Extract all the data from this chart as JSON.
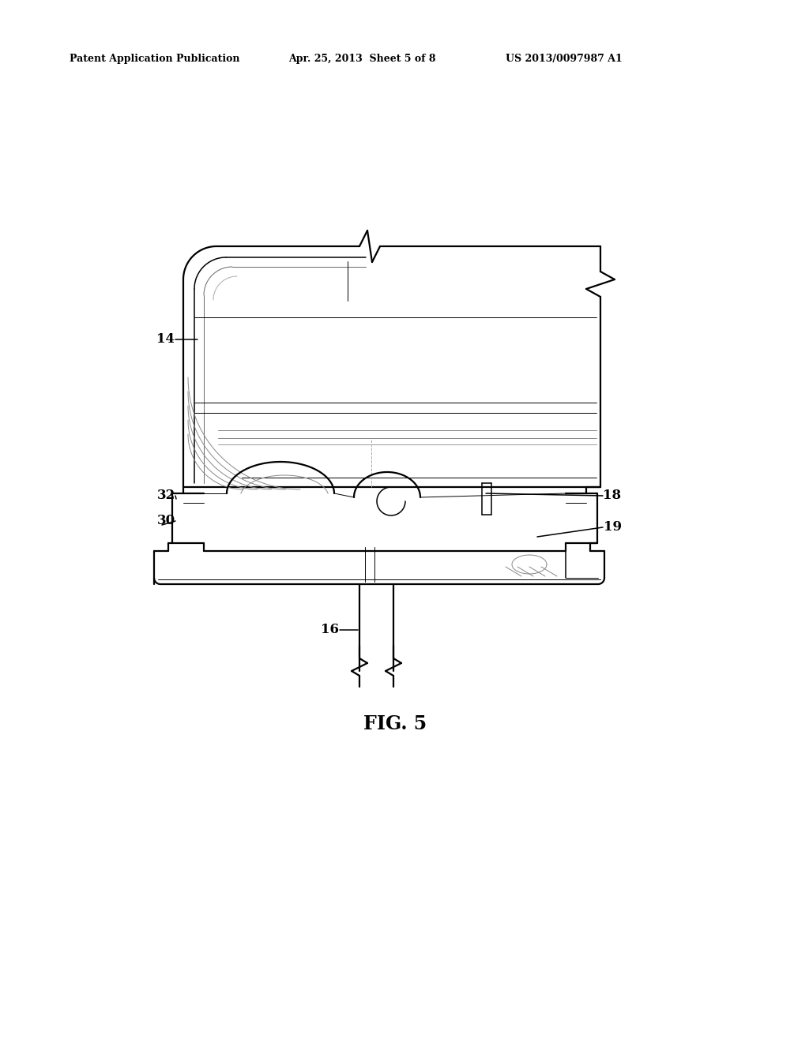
{
  "header_left": "Patent Application Publication",
  "header_mid": "Apr. 25, 2013  Sheet 5 of 8",
  "header_right": "US 2013/0097987 A1",
  "fig_label": "FIG. 5",
  "background": "#ffffff",
  "lw_main": 1.6,
  "lw_thin": 0.7,
  "lw_med": 1.1
}
